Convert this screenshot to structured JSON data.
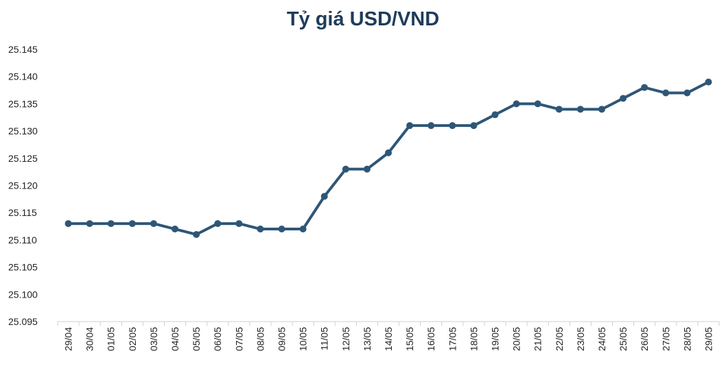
{
  "chart_data": {
    "type": "line",
    "title": "Tỷ giá USD/VND",
    "xlabel": "",
    "ylabel": "",
    "grid": false,
    "legend": "none",
    "categories": [
      "29/04",
      "30/04",
      "01/05",
      "02/05",
      "03/05",
      "04/05",
      "05/05",
      "06/05",
      "07/05",
      "08/05",
      "09/05",
      "10/05",
      "11/05",
      "12/05",
      "13/05",
      "14/05",
      "15/05",
      "16/05",
      "17/05",
      "18/05",
      "19/05",
      "20/05",
      "21/05",
      "22/05",
      "23/05",
      "24/05",
      "25/05",
      "26/05",
      "27/05",
      "28/05",
      "29/05"
    ],
    "series": [
      {
        "values": [
          25113,
          25113,
          25113,
          25113,
          25113,
          25112,
          25111,
          25113,
          25113,
          25112,
          25112,
          25112,
          25118,
          25123,
          25123,
          25126,
          25131,
          25131,
          25131,
          25131,
          25133,
          25135,
          25135,
          25134,
          25134,
          25134,
          25136,
          25138,
          25137,
          25137,
          25139
        ],
        "color": "#2e5677"
      }
    ],
    "ylim": [
      25095,
      25145
    ],
    "yticks": [
      "25.095",
      "25.100",
      "25.105",
      "25.110",
      "25.115",
      "25.120",
      "25.125",
      "25.130",
      "25.135",
      "25.140",
      "25.145"
    ],
    "title_color": "#1f3c5a"
  }
}
